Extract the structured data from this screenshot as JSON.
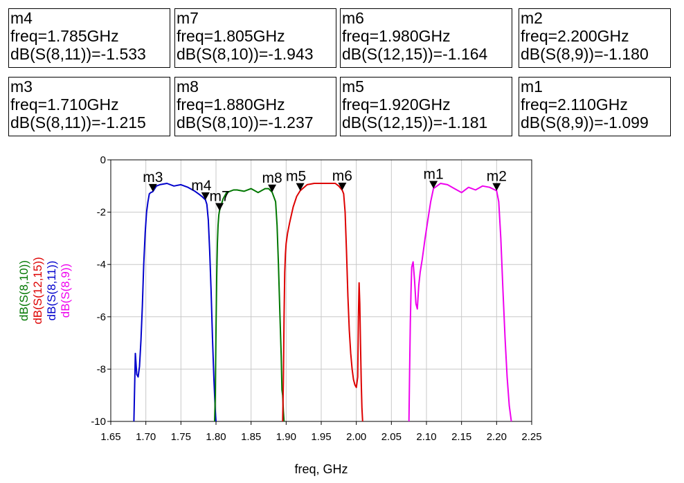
{
  "marker_table": [
    {
      "name": "m4",
      "freq": "freq=1.785GHz",
      "value": "dB(S(8,11))=-1.533"
    },
    {
      "name": "m7",
      "freq": "freq=1.805GHz",
      "value": "dB(S(8,10))=-1.943"
    },
    {
      "name": "m6",
      "freq": "freq=1.980GHz",
      "value": "dB(S(12,15))=-1.164"
    },
    {
      "name": "m2",
      "freq": "freq=2.200GHz",
      "value": "dB(S(8,9))=-1.180"
    },
    {
      "name": "m3",
      "freq": "freq=1.710GHz",
      "value": "dB(S(8,11))=-1.215"
    },
    {
      "name": "m8",
      "freq": "freq=1.880GHz",
      "value": "dB(S(8,10))=-1.237"
    },
    {
      "name": "m5",
      "freq": "freq=1.920GHz",
      "value": "dB(S(12,15))=-1.181"
    },
    {
      "name": "m1",
      "freq": "freq=2.110GHz",
      "value": "dB(S(8,9))=-1.099"
    }
  ],
  "chart_data": {
    "type": "line",
    "xlabel": "freq, GHz",
    "xlim": [
      1.65,
      2.25
    ],
    "ylim": [
      -10,
      0
    ],
    "xticks": [
      "1.65",
      "1.70",
      "1.75",
      "1.80",
      "1.85",
      "1.90",
      "1.95",
      "2.00",
      "2.05",
      "2.10",
      "2.15",
      "2.20",
      "2.25"
    ],
    "yticks": [
      "0",
      "-2",
      "-4",
      "-6",
      "-8",
      "-10"
    ],
    "grid": true,
    "series": [
      {
        "name": "dB(S(8,11))",
        "color": "#0000cc",
        "x": [
          1.683,
          1.685,
          1.687,
          1.689,
          1.691,
          1.693,
          1.695,
          1.697,
          1.699,
          1.701,
          1.703,
          1.705,
          1.707,
          1.71,
          1.715,
          1.72,
          1.73,
          1.74,
          1.75,
          1.76,
          1.77,
          1.775,
          1.78,
          1.785,
          1.787,
          1.789,
          1.791,
          1.793,
          1.795,
          1.797,
          1.799,
          1.8
        ],
        "y": [
          -10,
          -7.4,
          -8.2,
          -8.3,
          -7.9,
          -6.9,
          -5.6,
          -4.0,
          -2.8,
          -2.0,
          -1.6,
          -1.3,
          -1.25,
          -1.215,
          -1.0,
          -0.95,
          -0.9,
          -1.0,
          -0.95,
          -1.05,
          -1.2,
          -1.3,
          -1.4,
          -1.533,
          -1.7,
          -2.3,
          -3.5,
          -5.0,
          -6.8,
          -8.4,
          -9.6,
          -10
        ]
      },
      {
        "name": "dB(S(8,10))",
        "color": "#007700",
        "x": [
          1.798,
          1.799,
          1.8,
          1.801,
          1.802,
          1.803,
          1.804,
          1.805,
          1.81,
          1.815,
          1.82,
          1.825,
          1.83,
          1.84,
          1.85,
          1.86,
          1.87,
          1.875,
          1.88,
          1.885,
          1.887,
          1.889,
          1.891,
          1.893,
          1.894,
          1.895,
          1.896,
          1.897
        ],
        "y": [
          -10,
          -9.0,
          -6.5,
          -4.5,
          -3.2,
          -2.5,
          -2.1,
          -1.943,
          -1.5,
          -1.25,
          -1.2,
          -1.15,
          -1.15,
          -1.2,
          -1.1,
          -1.25,
          -1.1,
          -1.1,
          -1.237,
          -1.6,
          -2.5,
          -4.0,
          -5.8,
          -7.5,
          -8.8,
          -9.0,
          -9.6,
          -10
        ]
      },
      {
        "name": "dB(S(12,15))",
        "color": "#dd0000",
        "x": [
          1.895,
          1.896,
          1.897,
          1.898,
          1.899,
          1.9,
          1.902,
          1.905,
          1.91,
          1.915,
          1.92,
          1.93,
          1.94,
          1.95,
          1.96,
          1.97,
          1.975,
          1.98,
          1.982,
          1.984,
          1.986,
          1.988,
          1.99,
          1.992,
          1.994,
          1.996,
          1.998,
          2.0,
          2.002,
          2.003,
          2.004,
          2.005,
          2.006,
          2.007,
          2.008,
          2.009
        ],
        "y": [
          -10,
          -8.5,
          -6.0,
          -4.3,
          -3.6,
          -3.2,
          -2.8,
          -2.4,
          -1.8,
          -1.4,
          -1.181,
          -0.95,
          -0.9,
          -0.9,
          -0.9,
          -0.9,
          -1.0,
          -1.164,
          -1.3,
          -2.0,
          -3.5,
          -5.2,
          -6.5,
          -7.4,
          -8.0,
          -8.4,
          -8.6,
          -8.7,
          -8.3,
          -6.0,
          -4.7,
          -5.5,
          -7.0,
          -8.5,
          -9.5,
          -10
        ]
      },
      {
        "name": "dB(S(8,9))",
        "color": "#ee00ee",
        "x": [
          2.075,
          2.076,
          2.077,
          2.078,
          2.079,
          2.081,
          2.083,
          2.085,
          2.087,
          2.089,
          2.091,
          2.094,
          2.098,
          2.102,
          2.106,
          2.11,
          2.12,
          2.13,
          2.14,
          2.15,
          2.16,
          2.17,
          2.18,
          2.19,
          2.2,
          2.203,
          2.206,
          2.209,
          2.212,
          2.215,
          2.218,
          2.221
        ],
        "y": [
          -10,
          -8.0,
          -6.2,
          -5.0,
          -4.1,
          -3.9,
          -4.6,
          -5.5,
          -5.7,
          -4.8,
          -4.3,
          -3.8,
          -3.0,
          -2.3,
          -1.6,
          -1.099,
          -0.9,
          -0.95,
          -1.1,
          -1.25,
          -1.05,
          -1.15,
          -1.0,
          -1.05,
          -1.18,
          -1.6,
          -3.0,
          -5.0,
          -6.8,
          -8.3,
          -9.4,
          -10
        ]
      }
    ],
    "markers": [
      {
        "name": "m3",
        "x": 1.71,
        "y": -1.215
      },
      {
        "name": "m4",
        "x": 1.785,
        "y": -1.533
      },
      {
        "name": "m7",
        "x": 1.805,
        "y": -1.943
      },
      {
        "name": "m8",
        "x": 1.88,
        "y": -1.237
      },
      {
        "name": "m5",
        "x": 1.92,
        "y": -1.181
      },
      {
        "name": "m6",
        "x": 1.98,
        "y": -1.164
      },
      {
        "name": "m1",
        "x": 2.11,
        "y": -1.099
      },
      {
        "name": "m2",
        "x": 2.2,
        "y": -1.18
      }
    ]
  }
}
